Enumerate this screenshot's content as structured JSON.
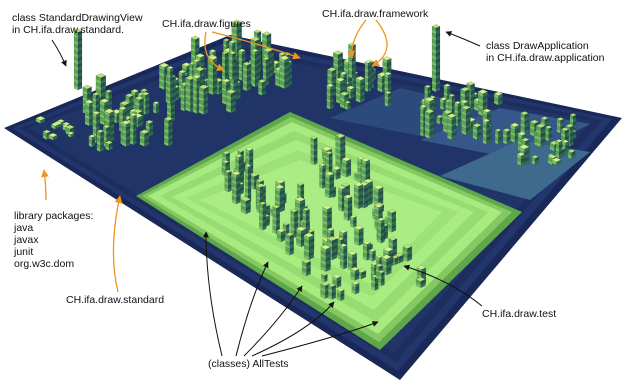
{
  "labels": {
    "standard_drawing_view": [
      "class StandardDrawingView",
      "in CH.ifa.draw.standard."
    ],
    "figures": "CH.ifa.draw.figures",
    "framework": "CH.ifa.draw.framework",
    "draw_application": [
      "class DrawApplication",
      "in CH.ifa.draw.application"
    ],
    "library_title": "library packages:",
    "library_items": [
      "java",
      "javax",
      "junit",
      "org.w3c.dom"
    ],
    "standard": "CH.ifa.draw.standard",
    "test": "CH.ifa.draw.test",
    "all_tests": "(classes) AllTests"
  },
  "colors": {
    "base_dark": "#1c2d5e",
    "base_terrace": "#243a73",
    "test_platform": "#a7ea7e",
    "test_platform_dark": "#86c964",
    "building_light": "#d8f28a",
    "building_mid": "#78c06a",
    "building_dark": "#2e6a5a",
    "arrow_orange": "#f0941e",
    "arrow_black": "#111111"
  }
}
